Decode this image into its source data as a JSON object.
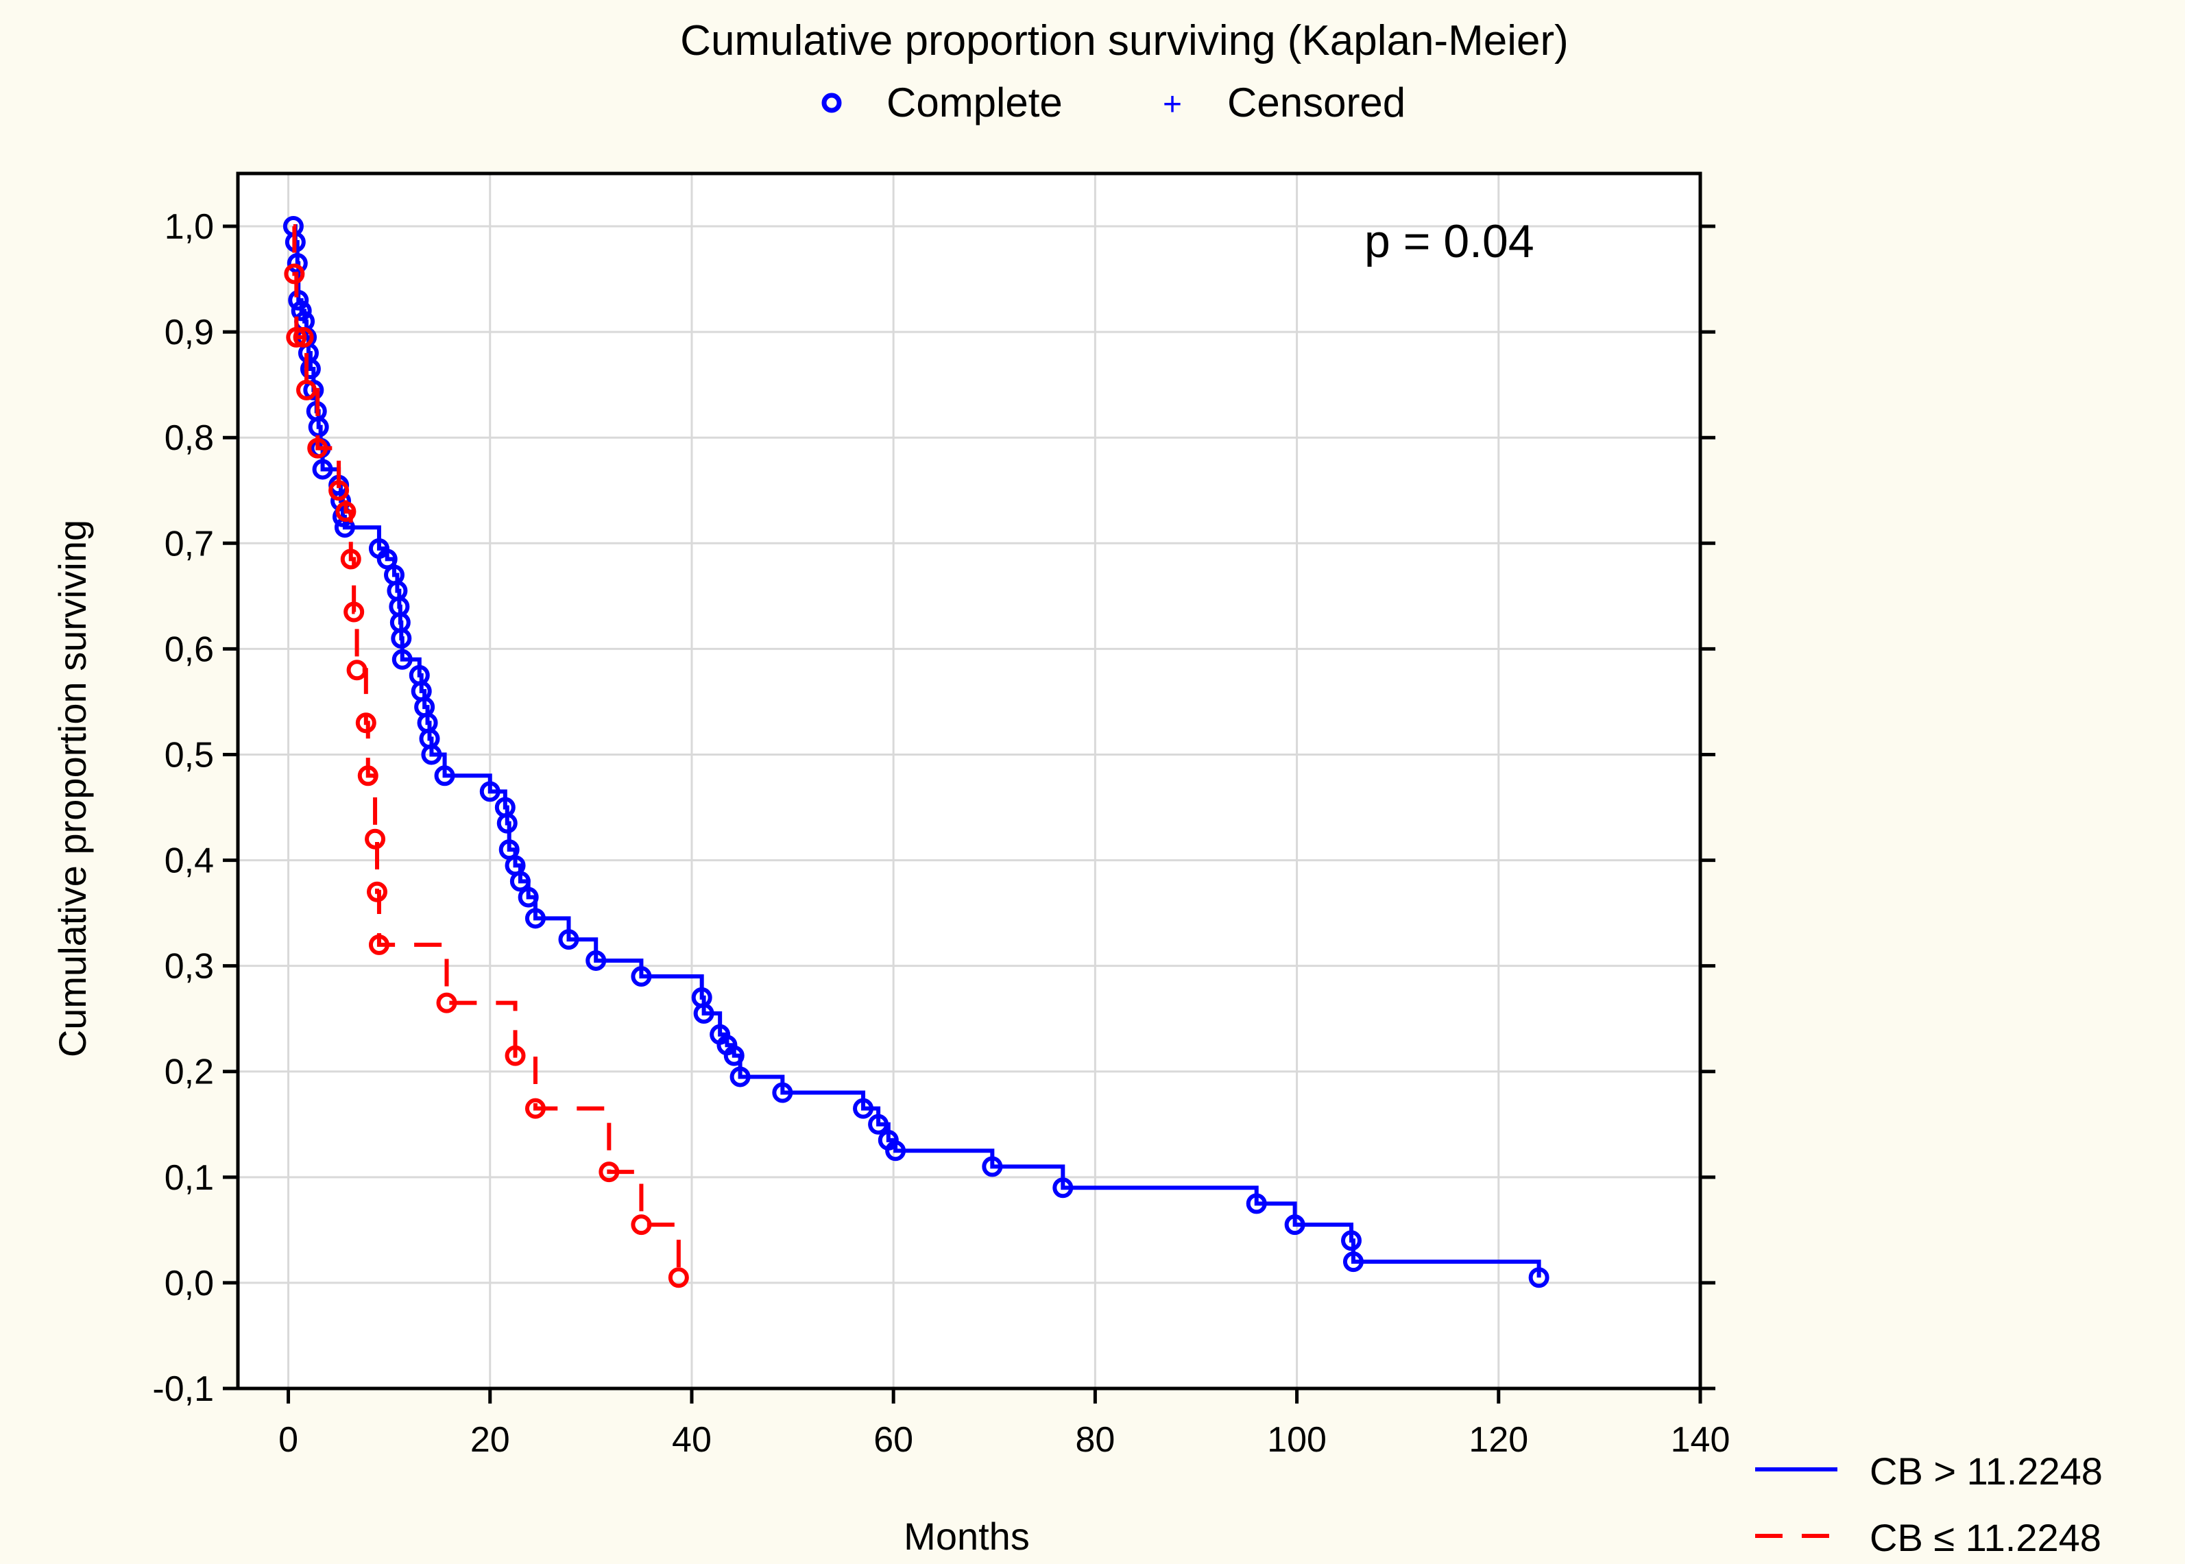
{
  "chart_data": {
    "type": "line",
    "subtype": "kaplan-meier",
    "title": "Cumulative proportion surviving (Kaplan-Meier)",
    "marker_legend": [
      {
        "label": "Complete",
        "symbol": "circle",
        "color": "#0000ff"
      },
      {
        "label": "Censored",
        "symbol": "+",
        "color": "#0000ff"
      }
    ],
    "xlabel": "Months",
    "ylabel": "Cumulative proportion surviving",
    "xlim": [
      -5,
      140
    ],
    "ylim": [
      -0.1,
      1.05
    ],
    "xticks": [
      0,
      20,
      40,
      60,
      80,
      100,
      120,
      140
    ],
    "xtick_labels": [
      "0",
      "20",
      "40",
      "60",
      "80",
      "100",
      "120",
      "140"
    ],
    "yticks": [
      -0.1,
      0.0,
      0.1,
      0.2,
      0.3,
      0.4,
      0.5,
      0.6,
      0.7,
      0.8,
      0.9,
      1.0
    ],
    "ytick_labels": [
      "-0,1",
      "0,0",
      "0,1",
      "0,2",
      "0,3",
      "0,4",
      "0,5",
      "0,6",
      "0,7",
      "0,8",
      "0,9",
      "1,0"
    ],
    "grid": true,
    "annotation": "p = 0.04",
    "legend_position": "bottom-right",
    "series": [
      {
        "name": "CB > 11.2248",
        "color": "#0000ff",
        "dash": "solid",
        "steps": [
          [
            0.5,
            1.0
          ],
          [
            0.7,
            0.985
          ],
          [
            0.9,
            0.965
          ],
          [
            1.0,
            0.93
          ],
          [
            1.3,
            0.92
          ],
          [
            1.6,
            0.91
          ],
          [
            1.8,
            0.895
          ],
          [
            2.0,
            0.88
          ],
          [
            2.2,
            0.865
          ],
          [
            2.5,
            0.845
          ],
          [
            2.8,
            0.825
          ],
          [
            3.0,
            0.81
          ],
          [
            3.2,
            0.79
          ],
          [
            3.4,
            0.77
          ],
          [
            5.0,
            0.755
          ],
          [
            5.2,
            0.74
          ],
          [
            5.4,
            0.725
          ],
          [
            5.6,
            0.715
          ],
          [
            9.0,
            0.695
          ],
          [
            9.8,
            0.685
          ],
          [
            10.5,
            0.67
          ],
          [
            10.8,
            0.655
          ],
          [
            11.0,
            0.64
          ],
          [
            11.1,
            0.625
          ],
          [
            11.2,
            0.61
          ],
          [
            11.3,
            0.59
          ],
          [
            13.0,
            0.575
          ],
          [
            13.2,
            0.56
          ],
          [
            13.5,
            0.545
          ],
          [
            13.8,
            0.53
          ],
          [
            14.0,
            0.515
          ],
          [
            14.2,
            0.5
          ],
          [
            15.5,
            0.48
          ],
          [
            20.0,
            0.465
          ],
          [
            21.5,
            0.45
          ],
          [
            21.7,
            0.435
          ],
          [
            21.9,
            0.41
          ],
          [
            22.5,
            0.395
          ],
          [
            23.0,
            0.38
          ],
          [
            23.8,
            0.365
          ],
          [
            24.5,
            0.345
          ],
          [
            27.8,
            0.325
          ],
          [
            30.5,
            0.305
          ],
          [
            35.0,
            0.29
          ],
          [
            41.0,
            0.27
          ],
          [
            41.2,
            0.255
          ],
          [
            42.8,
            0.235
          ],
          [
            43.5,
            0.225
          ],
          [
            44.2,
            0.215
          ],
          [
            44.8,
            0.195
          ],
          [
            49.0,
            0.18
          ],
          [
            57.0,
            0.165
          ],
          [
            58.5,
            0.15
          ],
          [
            59.5,
            0.135
          ],
          [
            60.2,
            0.125
          ],
          [
            69.8,
            0.11
          ],
          [
            76.8,
            0.09
          ],
          [
            96.0,
            0.075
          ],
          [
            99.8,
            0.055
          ],
          [
            105.4,
            0.04
          ],
          [
            105.6,
            0.02
          ],
          [
            124.0,
            0.005
          ]
        ]
      },
      {
        "name": "CB ≤ 11.2248",
        "color": "#ff0000",
        "dash": "dashed",
        "steps": [
          [
            0.6,
            0.955
          ],
          [
            0.8,
            0.895
          ],
          [
            1.5,
            0.895
          ],
          [
            1.8,
            0.845
          ],
          [
            2.9,
            0.79
          ],
          [
            5.0,
            0.75
          ],
          [
            5.7,
            0.73
          ],
          [
            6.2,
            0.685
          ],
          [
            6.5,
            0.635
          ],
          [
            6.8,
            0.58
          ],
          [
            7.7,
            0.53
          ],
          [
            7.9,
            0.48
          ],
          [
            8.6,
            0.42
          ],
          [
            8.8,
            0.37
          ],
          [
            9.0,
            0.32
          ],
          [
            15.7,
            0.265
          ],
          [
            22.5,
            0.215
          ],
          [
            24.5,
            0.165
          ],
          [
            31.8,
            0.105
          ],
          [
            35.0,
            0.055
          ],
          [
            38.7,
            0.005
          ]
        ]
      }
    ]
  }
}
